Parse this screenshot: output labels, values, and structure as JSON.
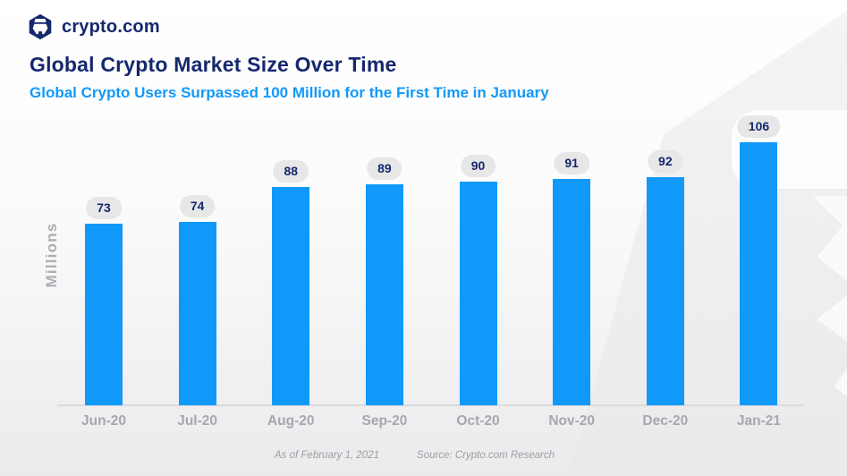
{
  "brand": {
    "logo_icon": "crypto-com-lion-hexagon-icon",
    "name": "crypto.com"
  },
  "header": {
    "title": "Global Crypto Market Size Over Time",
    "subtitle": "Global Crypto Users Surpassed 100 Million for the First Time in January"
  },
  "chart_data": {
    "type": "bar",
    "title": "Global Crypto Market Size Over Time",
    "categories": [
      "Jun-20",
      "Jul-20",
      "Aug-20",
      "Sep-20",
      "Oct-20",
      "Nov-20",
      "Dec-20",
      "Jan-21"
    ],
    "values": [
      73,
      74,
      88,
      89,
      90,
      91,
      92,
      106
    ],
    "xlabel": "",
    "ylabel": "Millions",
    "ylim": [
      0,
      110
    ],
    "grid": false,
    "legend": false,
    "value_labels_shown": true,
    "bar_color": "#1199FA",
    "value_pill_bg": "#E7E7E7",
    "value_text_color": "#15286D",
    "axis_label_color": "#A6A8AB",
    "baseline_color": "#DBDBDC"
  },
  "footer": {
    "as_of": "As of February 1, 2021",
    "source": "Source: Crypto.com Research"
  },
  "colors": {
    "brand_navy": "#15286D",
    "accent_blue": "#1199FA",
    "background_top": "#FFFFFF",
    "background_bottom": "#ECECEE"
  }
}
